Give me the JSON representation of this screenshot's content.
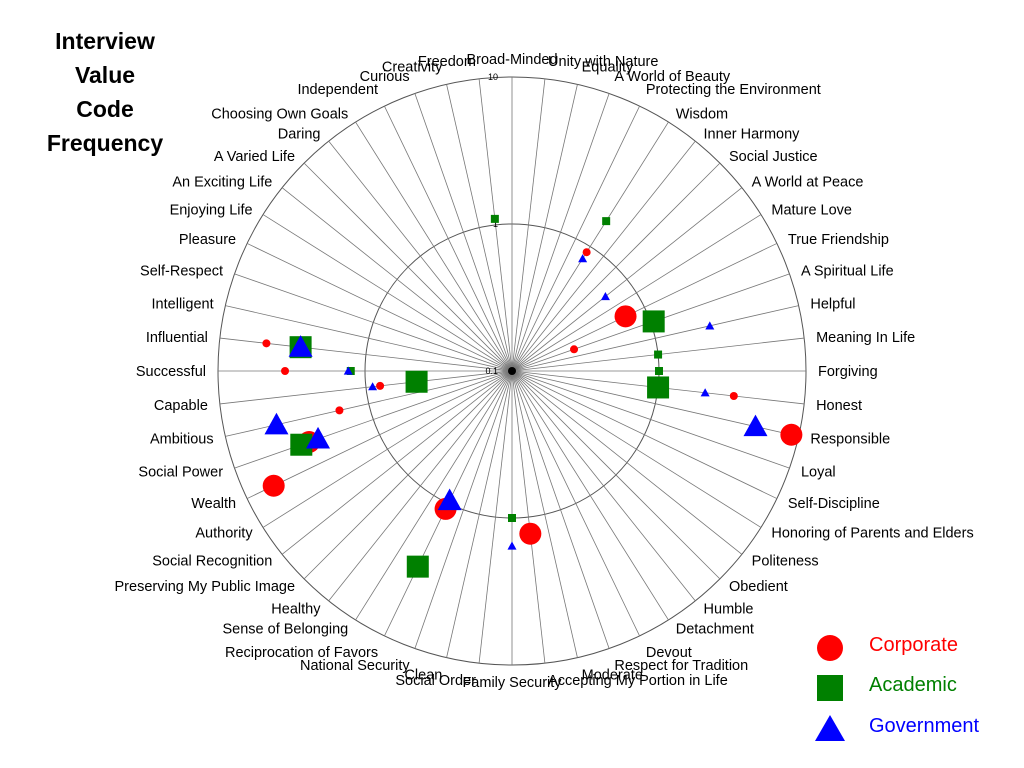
{
  "title": [
    "Interview",
    "Value",
    "Code",
    "Frequency"
  ],
  "chart_data": {
    "type": "scatter",
    "subtype": "polar",
    "radial_scale": "log",
    "radial_ticks": [
      "0.1",
      "1",
      "10"
    ],
    "radial_tick_values": [
      0.1,
      1,
      10
    ],
    "grid": true,
    "legend_position": "bottom-right",
    "categories": [
      "Broad-Minded",
      "Unity with Nature",
      "Equality",
      "A World of Beauty",
      "Protecting the Environment",
      "Wisdom",
      "Inner Harmony",
      "Social Justice",
      "A World at Peace",
      "Mature Love",
      "True Friendship",
      "A Spiritual Life",
      "Helpful",
      "Meaning In Life",
      "Forgiving",
      "Honest",
      "Responsible",
      "Loyal",
      "Self-Discipline",
      "Honoring of Parents and Elders",
      "Politeness",
      "Obedient",
      "Humble",
      "Detachment",
      "Devout",
      "Respect for Tradition",
      "Moderate",
      "Accepting My Portion in Life",
      "Family Security",
      "Social Order",
      "Clean",
      "National Security",
      "Reciprocation of Favors",
      "Sense of Belonging",
      "Healthy",
      "Preserving My Public Image",
      "Social Recognition",
      "Authority",
      "Wealth",
      "Social Power",
      "Ambitious",
      "Capable",
      "Successful",
      "Influential",
      "Intelligent",
      "Self-Respect",
      "Pleasure",
      "Enjoying Life",
      "An Exciting Life",
      "A Varied Life",
      "Daring",
      "Choosing Own Goals",
      "Independent",
      "Curious",
      "Creativity",
      "Freedom"
    ],
    "series": [
      {
        "name": "Corporate",
        "color": "#ff0000",
        "marker": "circle",
        "points": [
          {
            "category": "Wisdom",
            "value": 0.9,
            "size": "small"
          },
          {
            "category": "A Spiritual Life",
            "value": 0.28,
            "size": "small"
          },
          {
            "category": "True Friendship",
            "value": 0.72,
            "size": "large"
          },
          {
            "category": "Honest",
            "value": 3.3,
            "size": "small"
          },
          {
            "category": "Responsible",
            "value": 8.9,
            "size": "large"
          },
          {
            "category": "Accepting My Portion in Life",
            "value": 1.3,
            "size": "large"
          },
          {
            "category": "Reciprocation of Favors",
            "value": 1.1,
            "size": "large"
          },
          {
            "category": "Wealth",
            "value": 6.3,
            "size": "large"
          },
          {
            "category": "Social Power",
            "value": 2.9,
            "size": "large"
          },
          {
            "category": "Ambitious",
            "value": 1.6,
            "size": "small"
          },
          {
            "category": "Capable",
            "value": 0.8,
            "size": "small"
          },
          {
            "category": "Successful",
            "value": 3.5,
            "size": "small"
          },
          {
            "category": "Influential",
            "value": 4.8,
            "size": "small"
          }
        ]
      },
      {
        "name": "Academic",
        "color": "#008000",
        "marker": "square",
        "points": [
          {
            "category": "Freedom",
            "value": 1.1,
            "size": "small"
          },
          {
            "category": "Wisdom",
            "value": 1.6,
            "size": "small"
          },
          {
            "category": "A Spiritual Life",
            "value": 1.05,
            "size": "large"
          },
          {
            "category": "Meaning In Life",
            "value": 1.0,
            "size": "small"
          },
          {
            "category": "Forgiving",
            "value": 1.0,
            "size": "small"
          },
          {
            "category": "Honest",
            "value": 1.0,
            "size": "large"
          },
          {
            "category": "Family Security",
            "value": 1.0,
            "size": "small"
          },
          {
            "category": "Reciprocation of Favors",
            "value": 3.0,
            "size": "large"
          },
          {
            "category": "Social Power",
            "value": 3.3,
            "size": "large"
          },
          {
            "category": "Capable",
            "value": 0.45,
            "size": "large"
          },
          {
            "category": "Successful",
            "value": 1.25,
            "size": "small"
          },
          {
            "category": "Influential",
            "value": 2.8,
            "size": "large"
          }
        ]
      },
      {
        "name": "Government",
        "color": "#0000ff",
        "marker": "triangle",
        "points": [
          {
            "category": "Wisdom",
            "value": 0.8,
            "size": "small"
          },
          {
            "category": "A World at Peace",
            "value": 0.65,
            "size": "small"
          },
          {
            "category": "Helpful",
            "value": 2.4,
            "size": "small"
          },
          {
            "category": "Honest",
            "value": 2.1,
            "size": "small"
          },
          {
            "category": "Responsible",
            "value": 5.0,
            "size": "large"
          },
          {
            "category": "Family Security",
            "value": 1.55,
            "size": "small"
          },
          {
            "category": "Reciprocation of Favors",
            "value": 0.95,
            "size": "large"
          },
          {
            "category": "Social Power",
            "value": 2.5,
            "size": "large"
          },
          {
            "category": "Capable",
            "value": 0.9,
            "size": "small"
          },
          {
            "category": "Ambitious",
            "value": 4.4,
            "size": "large"
          },
          {
            "category": "Successful",
            "value": 1.3,
            "size": "small"
          },
          {
            "category": "Influential",
            "value": 2.8,
            "size": "large"
          }
        ]
      }
    ]
  },
  "legend": [
    {
      "label": "Corporate",
      "color": "#ff0000",
      "marker": "circle"
    },
    {
      "label": "Academic",
      "color": "#008000",
      "marker": "square"
    },
    {
      "label": "Government",
      "color": "#0000ff",
      "marker": "triangle"
    }
  ]
}
